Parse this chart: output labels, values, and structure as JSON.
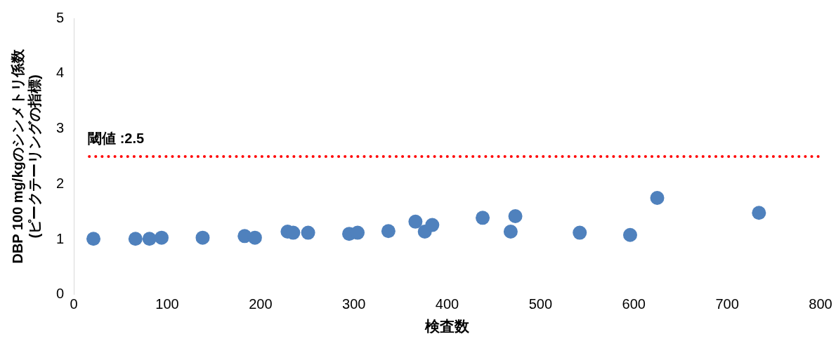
{
  "chart_data": {
    "type": "scatter",
    "xlabel": "検査数",
    "ylabel": "DBP 100 mg/kgのシンメトリ係数\n(ピークテーリングの指標)",
    "x": [
      21,
      66,
      81,
      94,
      138,
      183,
      194,
      229,
      235,
      251,
      295,
      304,
      337,
      366,
      376,
      384,
      438,
      468,
      473,
      542,
      596,
      625,
      734
    ],
    "series": [
      {
        "color": "#4f81bd",
        "values": [
          1.01,
          1.01,
          1.01,
          1.03,
          1.03,
          1.06,
          1.03,
          1.14,
          1.12,
          1.12,
          1.1,
          1.12,
          1.15,
          1.32,
          1.14,
          1.26,
          1.39,
          1.14,
          1.42,
          1.12,
          1.08,
          1.75,
          1.48
        ]
      }
    ],
    "xlim": [
      0,
      800
    ],
    "xticks": [
      0,
      100,
      200,
      300,
      400,
      500,
      600,
      700,
      800
    ],
    "ylim": [
      0,
      5
    ],
    "yticks": [
      0,
      1,
      2,
      3,
      4,
      5
    ],
    "ref_lines": [
      {
        "axis": "y",
        "value": 2.5,
        "label": "閾値 :2.5",
        "color": "#ff0000",
        "line_style": "dotted"
      }
    ],
    "grid": false,
    "legend": false,
    "marker": "circle"
  }
}
